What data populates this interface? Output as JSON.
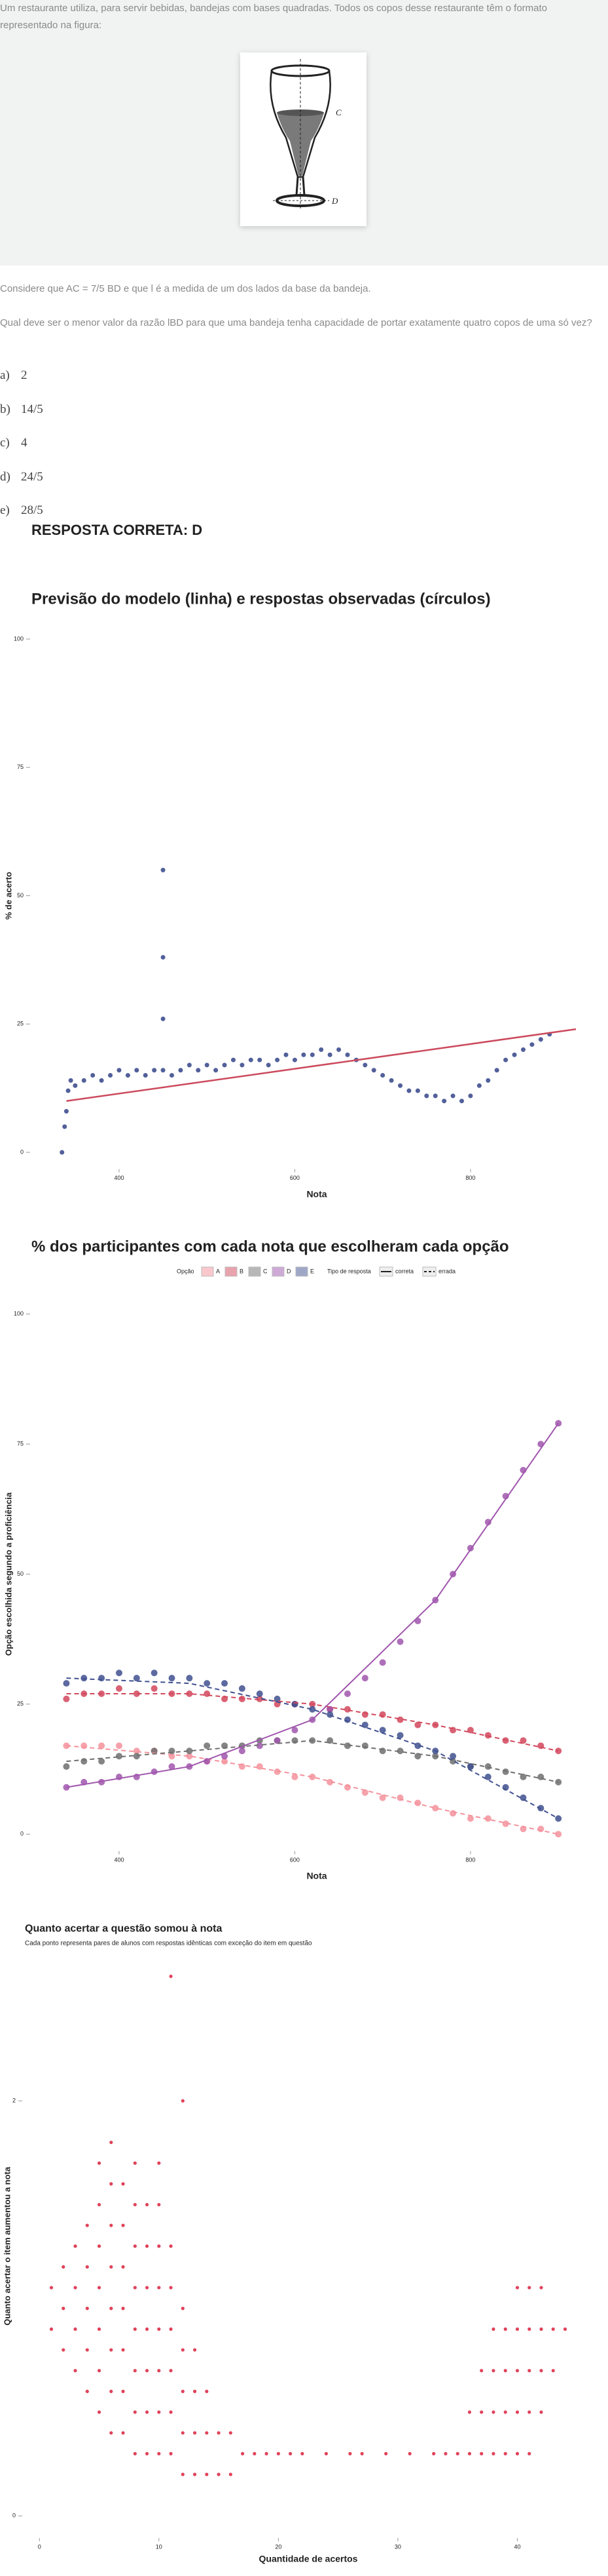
{
  "question": {
    "intro": "Um restaurante utiliza, para servir bebidas, bandejas com bases quadradas. Todos os copos desse restaurante têm o formato representado na figura:",
    "figure_labels": [
      "C",
      "D"
    ],
    "statement1": "Considere que AC = 7/5 BD e que l é a medida de um dos lados da base da bandeja.",
    "statement2": "Qual deve ser o menor valor da razão lBD para que uma bandeja tenha capacidade de portar exatamente quatro copos de uma só vez?",
    "options": [
      {
        "letter": "a)",
        "text": "2"
      },
      {
        "letter": "b)",
        "text": "14/5"
      },
      {
        "letter": "c)",
        "text": "4"
      },
      {
        "letter": "d)",
        "text": "24/5"
      },
      {
        "letter": "e)",
        "text": "28/5"
      }
    ],
    "answer": "RESPOSTA CORRETA: D"
  },
  "chart_data": [
    {
      "type": "scatter",
      "title": "Previsão do modelo (linha) e respostas observadas (círculos)",
      "x_label": "Nota",
      "y_label": "% de acerto",
      "xlim": [
        330,
        920
      ],
      "xticks": [
        400,
        600,
        800
      ],
      "ylim": [
        -3,
        103
      ],
      "yticks": [
        0,
        25,
        50,
        75,
        100
      ],
      "points": {
        "color": "#3f4f8f",
        "x": [
          335,
          338,
          340,
          342,
          345,
          350,
          360,
          370,
          380,
          390,
          400,
          410,
          420,
          430,
          440,
          450,
          450,
          450,
          450,
          460,
          470,
          480,
          490,
          500,
          510,
          520,
          530,
          540,
          550,
          560,
          570,
          580,
          590,
          600,
          610,
          620,
          630,
          640,
          650,
          660,
          670,
          680,
          690,
          700,
          710,
          720,
          730,
          740,
          750,
          760,
          770,
          780,
          790,
          800,
          810,
          820,
          830,
          840,
          850,
          860,
          870,
          880,
          890
        ],
        "values": [
          0,
          5,
          8,
          12,
          14,
          13,
          14,
          15,
          14,
          15,
          16,
          15,
          16,
          15,
          16,
          55,
          38,
          26,
          16,
          15,
          16,
          17,
          16,
          17,
          16,
          17,
          18,
          17,
          18,
          18,
          17,
          18,
          19,
          18,
          19,
          19,
          20,
          19,
          20,
          19,
          18,
          17,
          16,
          15,
          14,
          13,
          12,
          12,
          11,
          11,
          10,
          11,
          10,
          11,
          13,
          14,
          16,
          18,
          19,
          20,
          21,
          22,
          23
        ]
      },
      "model": {
        "color": "#cc4a5c",
        "x": [
          340,
          920
        ],
        "values": [
          10,
          24
        ]
      }
    },
    {
      "type": "scatter_fit",
      "title": "% dos participantes com cada nota que escolheram cada opção",
      "x_label": "Nota",
      "y_label": "Opção escolhida segundo a proficiência",
      "legend_title": "Opção",
      "line_legend_title": "Tipo de resposta",
      "line_types": [
        {
          "name": "correta",
          "dashed": false
        },
        {
          "name": "errada",
          "dashed": true
        }
      ],
      "xlim": [
        330,
        920
      ],
      "xticks": [
        400,
        600,
        800
      ],
      "ylim": [
        -3,
        103
      ],
      "yticks": [
        0,
        25,
        50,
        75,
        100
      ],
      "x": [
        340,
        360,
        380,
        400,
        420,
        440,
        460,
        480,
        500,
        520,
        540,
        560,
        580,
        600,
        620,
        640,
        660,
        680,
        700,
        720,
        740,
        760,
        780,
        800,
        820,
        840,
        860,
        880,
        900
      ],
      "fit_x": [
        340,
        480,
        620,
        760,
        900
      ],
      "series": [
        {
          "name": "A",
          "color": "#f4929c",
          "line_type": 1,
          "values": [
            17,
            17,
            17,
            17,
            16,
            16,
            15,
            15,
            14,
            14,
            13,
            13,
            12,
            11,
            11,
            10,
            9,
            8,
            7,
            7,
            6,
            5,
            4,
            3,
            3,
            2,
            1,
            1,
            0
          ],
          "fit": [
            17,
            15,
            11,
            5,
            0
          ]
        },
        {
          "name": "B",
          "color": "#d2475c",
          "line_type": 1,
          "values": [
            26,
            27,
            27,
            28,
            27,
            28,
            27,
            27,
            27,
            26,
            26,
            26,
            25,
            25,
            25,
            24,
            24,
            23,
            23,
            22,
            21,
            21,
            20,
            20,
            19,
            18,
            18,
            17,
            16
          ],
          "fit": [
            27,
            27,
            25,
            21,
            16
          ]
        },
        {
          "name": "C",
          "color": "#6f6f6f",
          "line_type": 1,
          "values": [
            13,
            14,
            14,
            15,
            15,
            16,
            16,
            16,
            17,
            17,
            17,
            18,
            18,
            18,
            18,
            18,
            17,
            17,
            16,
            16,
            15,
            15,
            14,
            13,
            13,
            12,
            11,
            11,
            10
          ],
          "fit": [
            14,
            16,
            18,
            15,
            10
          ]
        },
        {
          "name": "D",
          "color": "#a056ad",
          "line_type": 0,
          "values": [
            9,
            10,
            10,
            11,
            11,
            12,
            13,
            13,
            14,
            15,
            16,
            17,
            18,
            20,
            22,
            24,
            27,
            30,
            33,
            37,
            41,
            45,
            50,
            55,
            60,
            65,
            70,
            75,
            79
          ],
          "fit": [
            9,
            13,
            22,
            45,
            79
          ]
        },
        {
          "name": "E",
          "color": "#40508f",
          "line_type": 1,
          "values": [
            29,
            30,
            30,
            31,
            30,
            31,
            30,
            30,
            29,
            29,
            28,
            27,
            26,
            25,
            24,
            23,
            22,
            21,
            20,
            19,
            17,
            16,
            15,
            13,
            11,
            9,
            7,
            5,
            3
          ],
          "fit": [
            30,
            29,
            24,
            16,
            3
          ]
        }
      ]
    },
    {
      "type": "dots",
      "title": "Quanto acertar a questão somou à nota",
      "subtitle": "Cada ponto representa pares de alunos com respostas idênticas com exceção do item em questão",
      "x_label": "Quantidade de acertos",
      "y_label": "Quanto acertar o item aumentou a nota",
      "xlim": [
        -1,
        46
      ],
      "xticks": [
        0,
        10,
        20,
        30,
        40
      ],
      "ylim": [
        -0.1,
        2.7
      ],
      "yticks": [
        0,
        2
      ],
      "color": "#e0435a",
      "x": [
        1,
        1,
        2,
        2,
        2,
        3,
        3,
        3,
        3,
        4,
        4,
        4,
        4,
        4,
        5,
        5,
        5,
        5,
        5,
        5,
        5,
        6,
        6,
        6,
        6,
        6,
        6,
        6,
        6,
        7,
        7,
        7,
        7,
        7,
        7,
        7,
        8,
        8,
        8,
        8,
        8,
        8,
        8,
        8,
        9,
        9,
        9,
        9,
        9,
        9,
        9,
        10,
        10,
        10,
        10,
        10,
        10,
        10,
        10,
        11,
        11,
        11,
        11,
        11,
        11,
        11,
        12,
        12,
        12,
        12,
        12,
        12,
        13,
        13,
        13,
        13,
        14,
        14,
        14,
        15,
        15,
        16,
        16,
        17,
        18,
        19,
        20,
        21,
        22,
        24,
        26,
        27,
        29,
        31,
        33,
        34,
        35,
        36,
        36,
        37,
        37,
        37,
        38,
        38,
        38,
        38,
        39,
        39,
        39,
        39,
        40,
        40,
        40,
        40,
        40,
        41,
        41,
        41,
        41,
        41,
        42,
        42,
        42,
        42,
        43,
        43,
        44
      ],
      "values": [
        0.9,
        1.1,
        0.8,
        1.0,
        1.2,
        0.7,
        0.9,
        1.1,
        1.3,
        0.6,
        0.8,
        1.0,
        1.2,
        1.4,
        0.5,
        0.7,
        0.9,
        1.1,
        1.3,
        1.5,
        1.7,
        0.4,
        0.6,
        0.8,
        1.0,
        1.2,
        1.4,
        1.6,
        1.8,
        0.4,
        0.6,
        0.8,
        1.0,
        1.2,
        1.4,
        1.6,
        0.3,
        0.5,
        0.7,
        0.9,
        1.1,
        1.3,
        1.5,
        1.7,
        0.3,
        0.5,
        0.7,
        0.9,
        1.1,
        1.3,
        1.5,
        0.3,
        0.5,
        0.7,
        0.9,
        1.1,
        1.3,
        1.5,
        1.7,
        0.3,
        0.5,
        0.7,
        0.9,
        1.1,
        1.3,
        2.6,
        0.2,
        0.4,
        0.6,
        0.8,
        1.0,
        2.0,
        0.2,
        0.4,
        0.6,
        0.8,
        0.2,
        0.4,
        0.6,
        0.2,
        0.4,
        0.2,
        0.4,
        0.3,
        0.3,
        0.3,
        0.3,
        0.3,
        0.3,
        0.3,
        0.3,
        0.3,
        0.3,
        0.3,
        0.3,
        0.3,
        0.3,
        0.3,
        0.5,
        0.3,
        0.5,
        0.7,
        0.3,
        0.5,
        0.7,
        0.9,
        0.3,
        0.5,
        0.7,
        0.9,
        0.3,
        0.5,
        0.7,
        0.9,
        1.1,
        0.3,
        0.5,
        0.7,
        0.9,
        1.1,
        0.5,
        0.7,
        0.9,
        1.1,
        0.7,
        0.9,
        0.9
      ]
    }
  ]
}
